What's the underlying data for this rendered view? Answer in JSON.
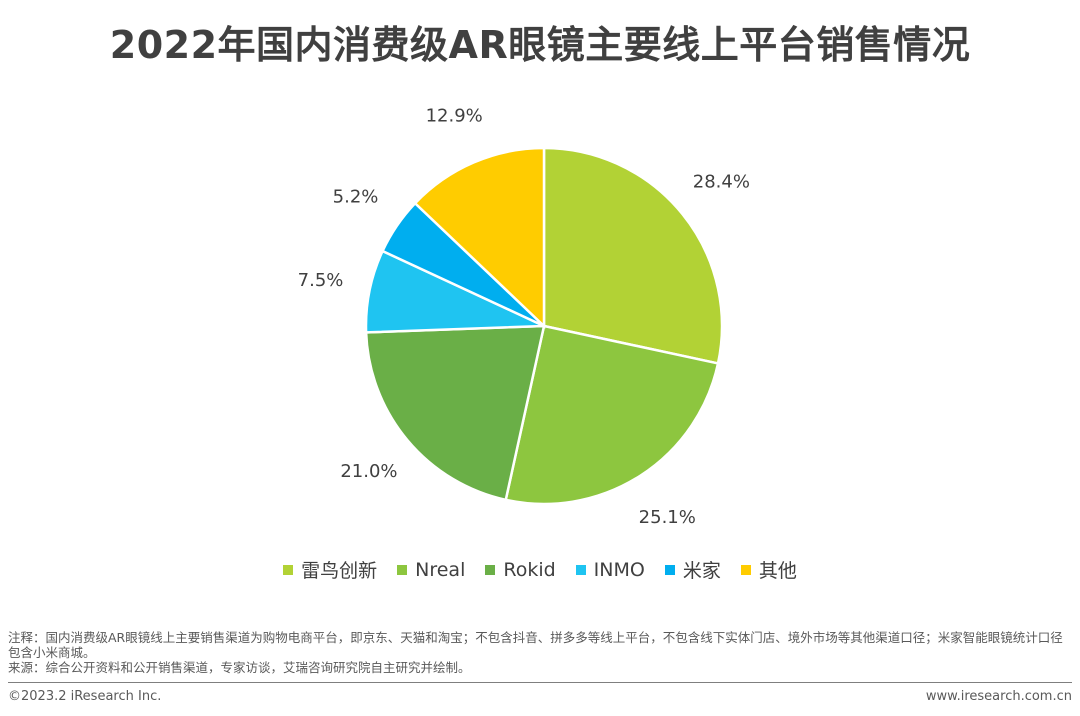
{
  "chart_data": {
    "type": "pie",
    "title": "2022年国内消费级AR眼镜主要线上平台销售情况",
    "unit": "%",
    "start_angle_deg": 0,
    "direction": "clockwise",
    "legend_position": "bottom",
    "slices": [
      {
        "name": "雷鸟创新",
        "value": 28.4,
        "label": "28.4%",
        "color": "#b2d235"
      },
      {
        "name": "Nreal",
        "value": 25.1,
        "label": "25.1%",
        "color": "#8dc63f"
      },
      {
        "name": "Rokid",
        "value": 21.0,
        "label": "21.0%",
        "color": "#6aaf47"
      },
      {
        "name": "INMO",
        "value": 7.5,
        "label": "7.5%",
        "color": "#1fc4f1"
      },
      {
        "name": "米家",
        "value": 5.2,
        "label": "5.2%",
        "color": "#00aeef"
      },
      {
        "name": "其他",
        "value": 12.9,
        "label": "12.9%",
        "color": "#ffcc00"
      }
    ]
  },
  "notes": {
    "note": "注释：国内消费级AR眼镜线上主要销售渠道为购物电商平台，即京东、天猫和淘宝；不包含抖音、拼多多等线上平台，不包含线下实体门店、境外市场等其他渠道口径；米家智能眼镜统计口径包含小米商城。",
    "source": "来源：综合公开资料和公开销售渠道，专家访谈，艾瑞咨询研究院自主研究并绘制。"
  },
  "footer": {
    "copyright": "©2023.2 iResearch Inc.",
    "website": "www.iresearch.com.cn"
  }
}
